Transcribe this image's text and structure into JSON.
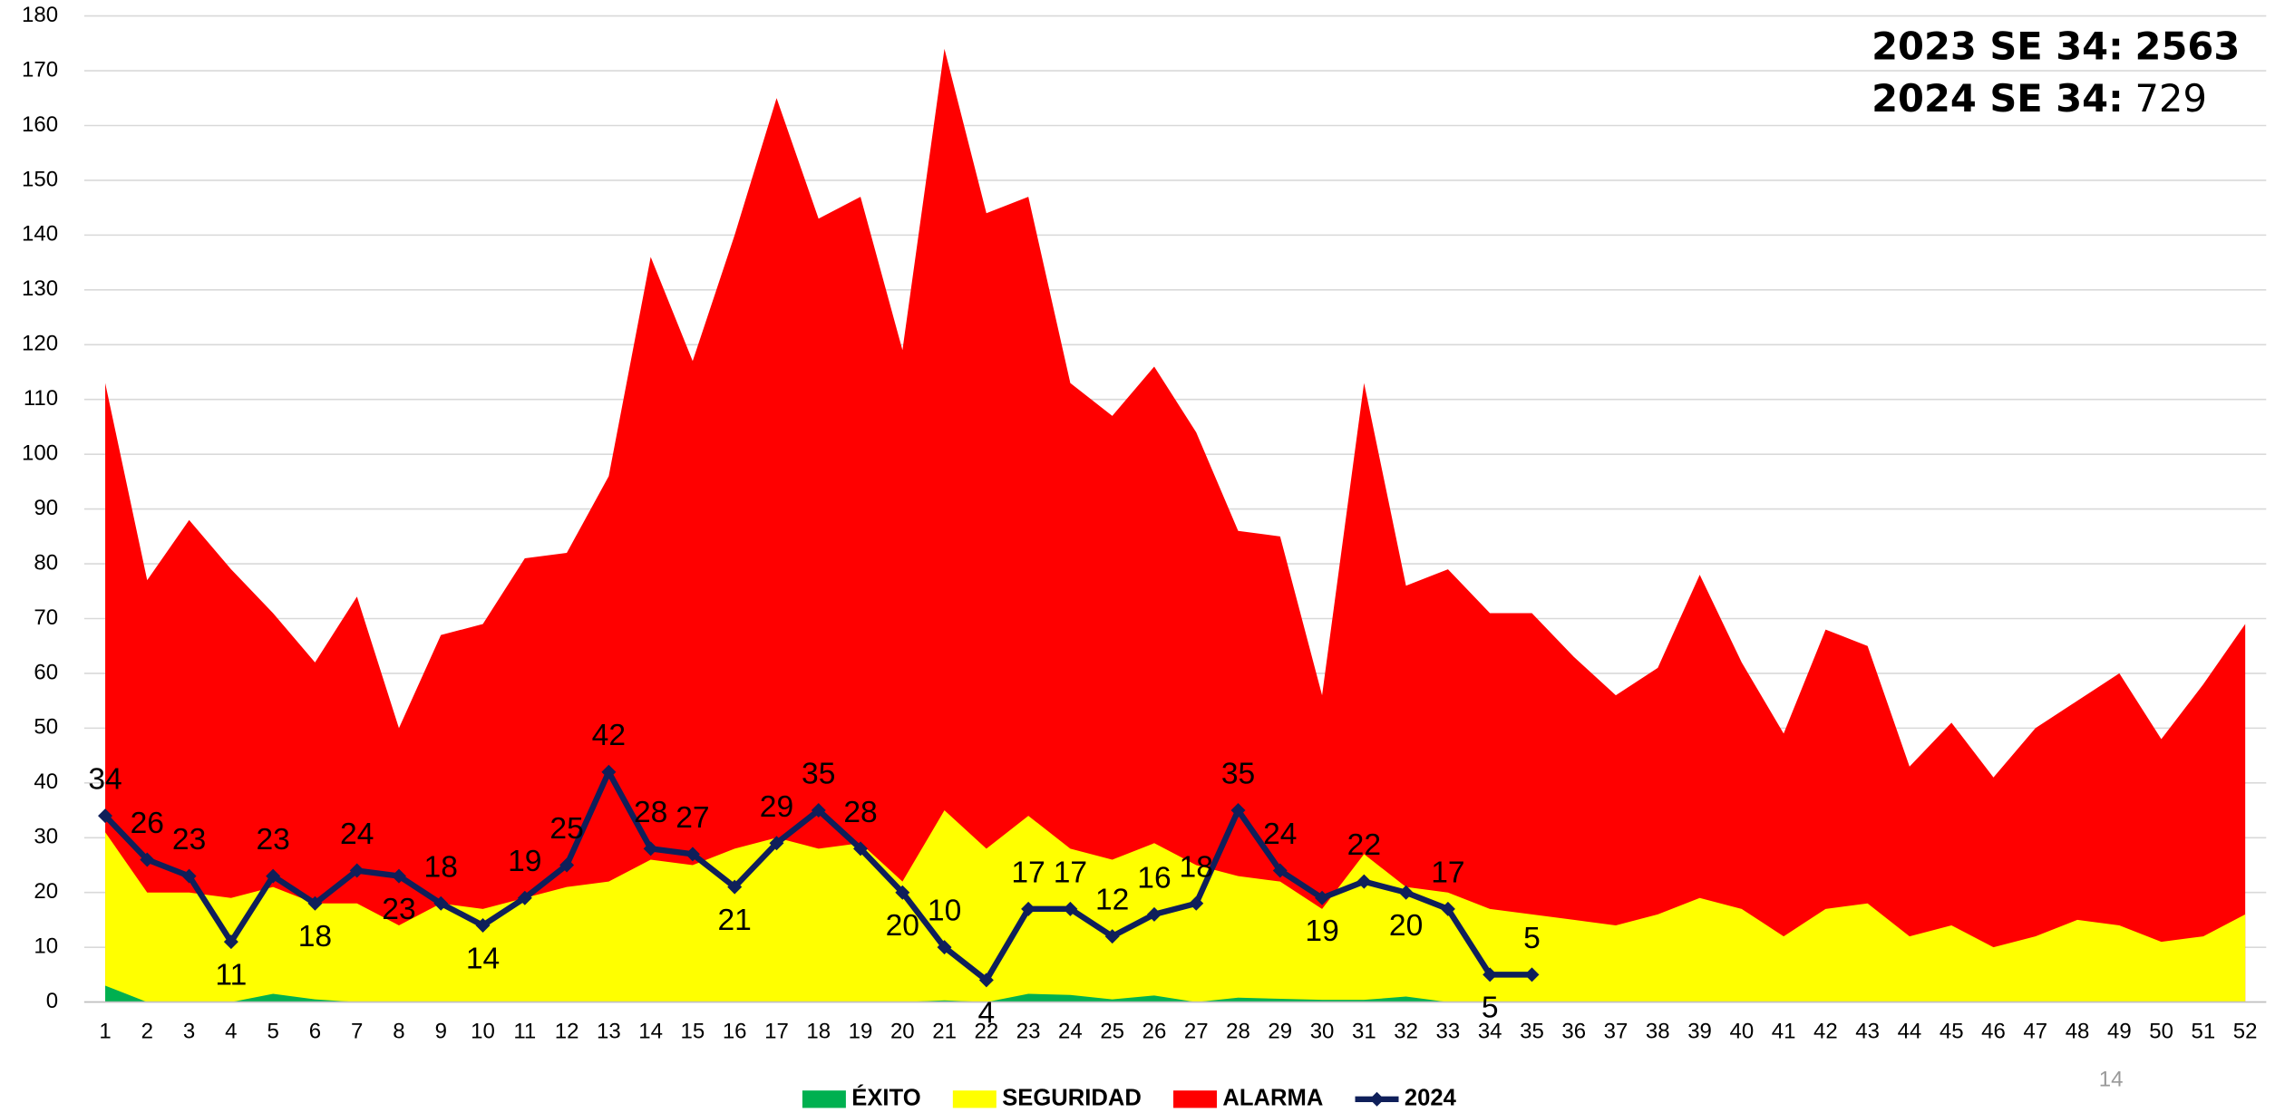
{
  "chart_data": {
    "type": "area",
    "annotations": [
      {
        "label": "2023 SE 34:",
        "value": "2563"
      },
      {
        "label": "2024 SE 34:",
        "value": "729"
      }
    ],
    "x": [
      1,
      2,
      3,
      4,
      5,
      6,
      7,
      8,
      9,
      10,
      11,
      12,
      13,
      14,
      15,
      16,
      17,
      18,
      19,
      20,
      21,
      22,
      23,
      24,
      25,
      26,
      27,
      28,
      29,
      30,
      31,
      32,
      33,
      34,
      35,
      36,
      37,
      38,
      39,
      40,
      41,
      42,
      43,
      44,
      45,
      46,
      47,
      48,
      49,
      50,
      51,
      52
    ],
    "xlim": [
      0.5,
      52.5
    ],
    "ylim": [
      0,
      180
    ],
    "yticks": [
      0,
      10,
      20,
      30,
      40,
      50,
      60,
      70,
      80,
      90,
      100,
      110,
      120,
      130,
      140,
      150,
      160,
      170,
      180
    ],
    "grid": true,
    "legend": "bottom",
    "series": [
      {
        "name": "ÉXITO",
        "type": "area",
        "color": "#00b050",
        "values": [
          3,
          0,
          0,
          0,
          1.5,
          0.5,
          0,
          0,
          0,
          0,
          0,
          0,
          0,
          0,
          0,
          0,
          0,
          0,
          0,
          0,
          0.3,
          0,
          1.5,
          1.3,
          0.5,
          1.2,
          0,
          0.8,
          0.6,
          0.4,
          0.4,
          1,
          0,
          0,
          0,
          0,
          0,
          0,
          0,
          0,
          0,
          0,
          0,
          0,
          0,
          0,
          0,
          0,
          0,
          0,
          0,
          0
        ]
      },
      {
        "name": "SEGURIDAD",
        "type": "area",
        "color": "#ffff00",
        "values": [
          31,
          20,
          20,
          19,
          21,
          18,
          18,
          14,
          18,
          17,
          19,
          21,
          22,
          26,
          25,
          28,
          30,
          28,
          29,
          22,
          35,
          28,
          34,
          28,
          26,
          29,
          25,
          23,
          22,
          17,
          27,
          21,
          20,
          17,
          16,
          15,
          14,
          16,
          19,
          17,
          12,
          17,
          18,
          12,
          14,
          10,
          12,
          15,
          14,
          11,
          12,
          16
        ]
      },
      {
        "name": "ALARMA",
        "type": "area",
        "color": "#ff0000",
        "values": [
          113,
          77,
          88,
          79,
          71,
          62,
          74,
          50,
          67,
          69,
          81,
          82,
          96,
          136,
          117,
          140,
          165,
          143,
          147,
          119,
          174,
          144,
          147,
          113,
          107,
          116,
          104,
          86,
          85,
          56,
          113,
          76,
          79,
          71,
          71,
          63,
          56,
          61,
          78,
          62,
          49,
          68,
          65,
          43,
          51,
          41,
          50,
          55,
          60,
          48,
          58,
          69
        ]
      },
      {
        "name": "2024",
        "type": "line",
        "color": "#0f1f5a",
        "values": [
          34,
          26,
          23,
          11,
          23,
          18,
          24,
          23,
          18,
          14,
          19,
          25,
          42,
          28,
          27,
          21,
          29,
          35,
          28,
          20,
          10,
          4,
          17,
          17,
          12,
          16,
          18,
          35,
          24,
          19,
          22,
          20,
          17,
          5,
          5,
          null,
          null,
          null,
          null,
          null,
          null,
          null,
          null,
          null,
          null,
          null,
          null,
          null,
          null,
          null,
          null,
          null
        ]
      }
    ]
  },
  "page_number": "14"
}
